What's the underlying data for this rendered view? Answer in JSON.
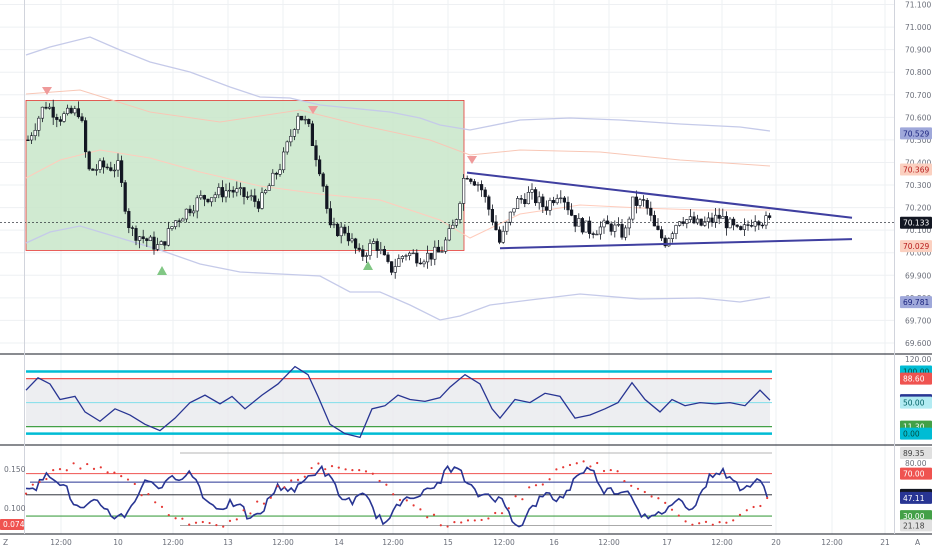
{
  "chart_data": [
    {
      "type": "candlestick",
      "panel": "price",
      "y_ticks": [
        "71.100",
        "71.000",
        "70.900",
        "70.800",
        "70.700",
        "70.600",
        "70.500",
        "70.400",
        "70.300",
        "70.200",
        "70.100",
        "70.000",
        "69.900",
        "69.800",
        "69.700",
        "69.600"
      ],
      "ylim": [
        69.56,
        71.12
      ],
      "markers": [
        {
          "label": "70.529",
          "value": 70.529,
          "color": "#9fa8da",
          "text_color": "#1a237e"
        },
        {
          "label": "70.369",
          "value": 70.369,
          "color": "#fbd0c0",
          "text_color": "#b71c1c"
        },
        {
          "label": "70.133",
          "value": 70.133,
          "color": "#131722",
          "text_color": "#ffffff"
        },
        {
          "label": "70.029",
          "value": 70.029,
          "color": "#fbd0c0",
          "text_color": "#b71c1c"
        },
        {
          "label": "69.781",
          "value": 69.781,
          "color": "#9fa8da",
          "text_color": "#1a237e"
        }
      ],
      "current_price": 70.133,
      "range_box": {
        "high": 70.675,
        "low": 70.01,
        "fill": "#c8e6c9",
        "border": "#e53935"
      },
      "triangle": {
        "upper": [
          [
            70.355
          ],
          [
            70.155
          ]
        ],
        "lower": [
          [
            70.02
          ],
          [
            70.06
          ]
        ],
        "color": "#3f3fa0"
      },
      "colors": {
        "candle": "#131722",
        "upper_band": "#c5cae9",
        "mid_band": "#ffccbc"
      }
    },
    {
      "type": "line",
      "panel": "oscillator",
      "y_ticks": [
        "120.00",
        "100.00",
        "88.60",
        "53.92",
        "50.00",
        "11.30",
        "0.00"
      ],
      "ylim": [
        -15,
        125
      ],
      "levels": [
        {
          "label": "100.00",
          "value": 100,
          "color": "#00bcd4",
          "text_color": "#004d40"
        },
        {
          "label": "88.60",
          "value": 88.6,
          "color": "#ef5350",
          "text_color": "#ffffff"
        },
        {
          "label": "53.92",
          "value": 53.92,
          "color": "#283593",
          "text_color": "#ffffff"
        },
        {
          "label": "50.00",
          "value": 50,
          "color": "#b2ebf2",
          "text_color": "#006064"
        },
        {
          "label": "11.30",
          "value": 11.3,
          "color": "#43a047",
          "text_color": "#ffffff"
        },
        {
          "label": "0.00",
          "value": 0,
          "color": "#00bcd4",
          "text_color": "#004d40"
        }
      ],
      "series": [
        {
          "color": "#283593"
        }
      ]
    },
    {
      "type": "line",
      "panel": "momentum",
      "left_ticks": [
        "0.150",
        "0.100"
      ],
      "left_badge": "0.074",
      "right_ticks": [
        "89.35",
        "80.00",
        "70.00",
        "50.00",
        "47.11",
        "30.00",
        "21.18"
      ],
      "right_ylim": [
        15,
        95
      ],
      "right_levels": [
        {
          "label": "89.35",
          "value": 89.35,
          "color": "#e0e0e0",
          "text_color": "#424242"
        },
        {
          "label": "70.00",
          "value": 70,
          "color": "#ef5350",
          "text_color": "#ffffff"
        },
        {
          "label": "50.00",
          "value": 50,
          "color": "#131722",
          "text_color": "#ffffff"
        },
        {
          "label": "47.11",
          "value": 47.11,
          "color": "#283593",
          "text_color": "#ffffff"
        },
        {
          "label": "30.00",
          "value": 30,
          "color": "#43a047",
          "text_color": "#ffffff"
        },
        {
          "label": "21.18",
          "value": 21.18,
          "color": "#e0e0e0",
          "text_color": "#424242"
        }
      ],
      "series": [
        {
          "color": "#283593"
        },
        {
          "color": "#e53935",
          "style": "dots"
        }
      ]
    }
  ],
  "x_axis": {
    "ticks": [
      "12:00",
      "10",
      "12:00",
      "13",
      "12:00",
      "14",
      "12:00",
      "15",
      "12:00",
      "16",
      "12:00",
      "17",
      "12:00",
      "20",
      "12:00",
      "21"
    ],
    "left_letter": "Z",
    "right_letter": "A"
  }
}
